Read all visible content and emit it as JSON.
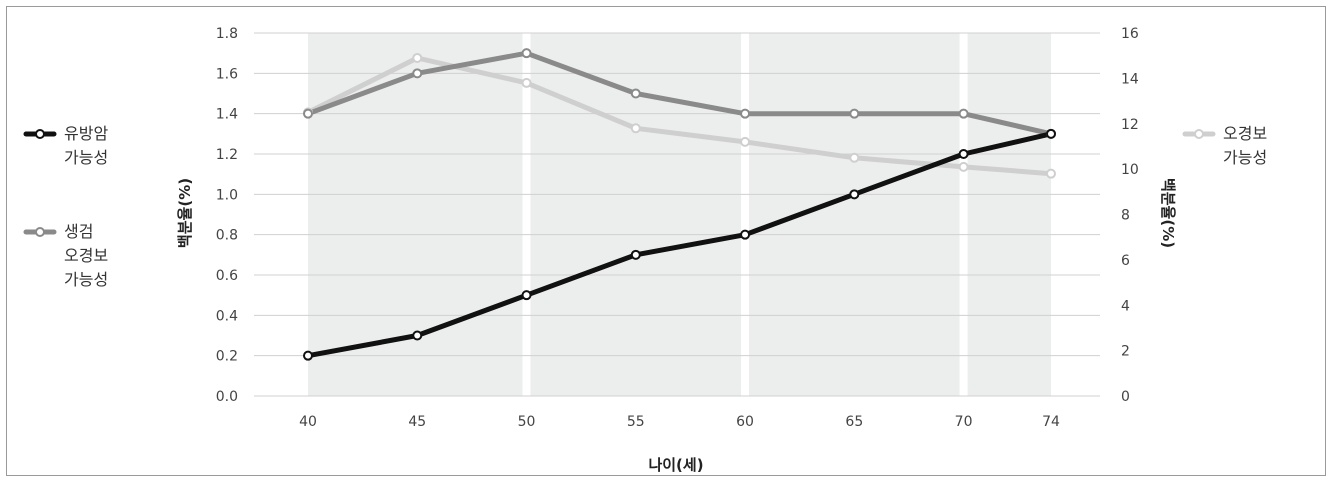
{
  "chart_data": {
    "type": "line",
    "x": [
      40,
      45,
      50,
      55,
      60,
      65,
      70,
      74
    ],
    "xlabel": "나이(세)",
    "ylabel_left": "백분율(%)",
    "ylabel_right": "백분율(%)",
    "ylim_left": [
      0,
      1.8
    ],
    "ylim_right": [
      0,
      16
    ],
    "yticks_left": [
      "0.0",
      "0.2",
      "0.4",
      "0.6",
      "0.8",
      "1.0",
      "1.2",
      "1.4",
      "1.6",
      "1.8"
    ],
    "yticks_right": [
      "0",
      "2",
      "4",
      "6",
      "8",
      "10",
      "12",
      "14",
      "16"
    ],
    "grid": true,
    "series": [
      {
        "name": "유방암 가능성",
        "name_lines": [
          "유방암",
          "가능성"
        ],
        "axis": "left",
        "color": "#111111",
        "values": [
          0.2,
          0.3,
          0.5,
          0.7,
          0.8,
          1.0,
          1.2,
          1.3
        ]
      },
      {
        "name": "생검 오경보 가능성",
        "name_lines": [
          "생검",
          "오경보",
          "가능성"
        ],
        "axis": "left",
        "color": "#8a8a8a",
        "values": [
          1.4,
          1.6,
          1.7,
          1.5,
          1.4,
          1.4,
          1.4,
          1.3
        ]
      },
      {
        "name": "오경보 가능성",
        "name_lines": [
          "오경보",
          "가능성"
        ],
        "axis": "right",
        "color": "#cfcfcf",
        "values": [
          12.5,
          14.9,
          13.8,
          11.8,
          11.2,
          10.5,
          10.1,
          9.8
        ]
      }
    ]
  }
}
